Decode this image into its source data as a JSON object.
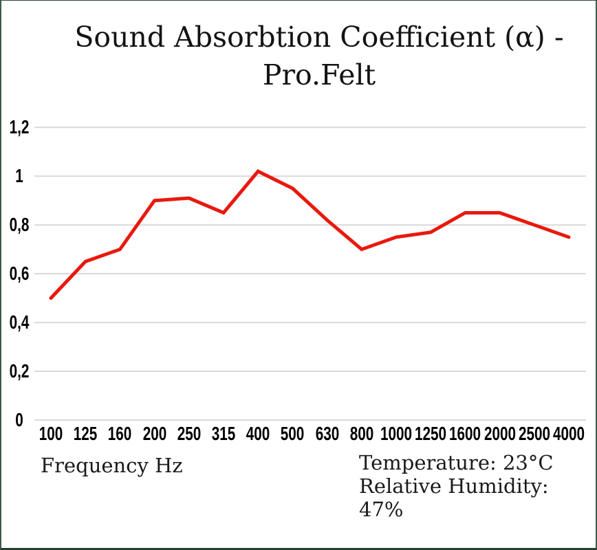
{
  "title": {
    "line1": "Sound Absorbtion Coefficient (α) -",
    "line2": "Pro.Felt"
  },
  "footer": {
    "xaxis_label": "Frequency Hz",
    "temperature": "Temperature: 23°C",
    "humidity": "Relative Humidity: 47%"
  },
  "colors": {
    "series_red": "#e8190d",
    "gridline": "#d9d9d9",
    "frame_green": "#3d5c48",
    "text_black": "#000000"
  },
  "chart_data": {
    "type": "line",
    "title": "Sound Absorbtion Coefficient (α) - Pro.Felt",
    "categories": [
      "100",
      "125",
      "160",
      "200",
      "250",
      "315",
      "400",
      "500",
      "630",
      "800",
      "1000",
      "1250",
      "1600",
      "2000",
      "2500",
      "4000"
    ],
    "series": [
      {
        "name": "Pro.Felt",
        "color": "#e8190d",
        "values": [
          0.5,
          0.65,
          0.7,
          0.9,
          0.91,
          0.85,
          1.02,
          0.95,
          0.82,
          0.7,
          0.75,
          0.77,
          0.85,
          0.85,
          0.8,
          0.75
        ]
      }
    ],
    "xlabel": "Frequency Hz",
    "ylabel": "",
    "ylim": [
      0,
      1.2
    ],
    "ytick_step": 0.2,
    "ytick_labels": [
      "0",
      "0,2",
      "0,4",
      "0,6",
      "0,8",
      "1",
      "1,2"
    ],
    "decimal_separator": ",",
    "grid": true,
    "gridline_color": "#d9d9d9",
    "legend": "none",
    "annotations": [
      "Temperature: 23°C",
      "Relative Humidity: 47%"
    ]
  }
}
